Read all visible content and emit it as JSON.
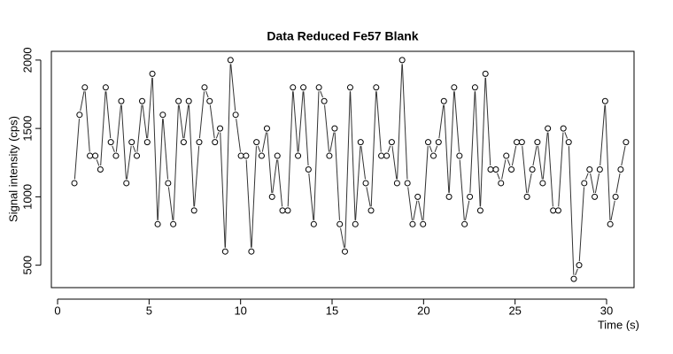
{
  "chart_data": {
    "type": "scatter-line",
    "title": "Data Reduced Fe57 Blank",
    "x_label": "Time (s)",
    "y_label": "Signal intensity (cps)",
    "x": [
      0.92,
      1.2,
      1.49,
      1.77,
      2.06,
      2.34,
      2.63,
      2.91,
      3.19,
      3.48,
      3.76,
      4.05,
      4.33,
      4.62,
      4.9,
      5.18,
      5.47,
      5.75,
      6.04,
      6.32,
      6.61,
      6.89,
      7.17,
      7.46,
      7.74,
      8.03,
      8.31,
      8.6,
      8.88,
      9.16,
      9.45,
      9.73,
      10.02,
      10.3,
      10.59,
      10.87,
      11.15,
      11.44,
      11.72,
      12.01,
      12.29,
      12.58,
      12.86,
      13.14,
      13.43,
      13.71,
      14.0,
      14.28,
      14.57,
      14.85,
      15.14,
      15.42,
      15.7,
      15.99,
      16.27,
      16.56,
      16.84,
      17.13,
      17.41,
      17.69,
      17.98,
      18.26,
      18.55,
      18.83,
      19.12,
      19.4,
      19.68,
      19.97,
      20.25,
      20.54,
      20.82,
      21.11,
      21.39,
      21.67,
      21.96,
      22.24,
      22.53,
      22.81,
      23.1,
      23.38,
      23.66,
      23.95,
      24.23,
      24.52,
      24.8,
      25.09,
      25.37,
      25.65,
      25.94,
      26.22,
      26.51,
      26.79,
      27.08,
      27.36,
      27.64,
      27.93,
      28.21,
      28.5,
      28.78,
      29.07,
      29.35,
      29.63,
      29.92,
      30.2,
      30.49,
      30.77,
      31.06
    ],
    "values": [
      1100,
      1600,
      1800,
      1300,
      1300,
      1200,
      1800,
      1400,
      1300,
      1700,
      1100,
      1400,
      1300,
      1700,
      1400,
      1900,
      800,
      1600,
      1100,
      800,
      1700,
      1400,
      1700,
      900,
      1400,
      1800,
      1700,
      1400,
      1500,
      600,
      2000,
      1600,
      1300,
      1300,
      600,
      1400,
      1300,
      1500,
      1000,
      1300,
      900,
      900,
      1800,
      1300,
      1800,
      1200,
      800,
      1800,
      1700,
      1300,
      1500,
      800,
      600,
      1800,
      800,
      1400,
      1100,
      900,
      1800,
      1300,
      1300,
      1400,
      1100,
      2000,
      1100,
      800,
      1000,
      800,
      1400,
      1300,
      1400,
      1700,
      1000,
      1800,
      1300,
      800,
      1000,
      1800,
      900,
      1900,
      1200,
      1200,
      1100,
      1300,
      1200,
      1400,
      1400,
      1000,
      1200,
      1400,
      1100,
      1500,
      900,
      900,
      1500,
      1400,
      400,
      500,
      1100,
      1200,
      1000,
      1200,
      1700,
      800,
      1000,
      1200,
      1400
    ],
    "color": "#333333",
    "xlim": [
      -0.34,
      31.5
    ],
    "ylim": [
      336,
      2064
    ],
    "xticks": [
      0,
      5,
      10,
      15,
      20,
      25,
      30
    ],
    "yticks": [
      500,
      1000,
      1500,
      2000
    ]
  }
}
